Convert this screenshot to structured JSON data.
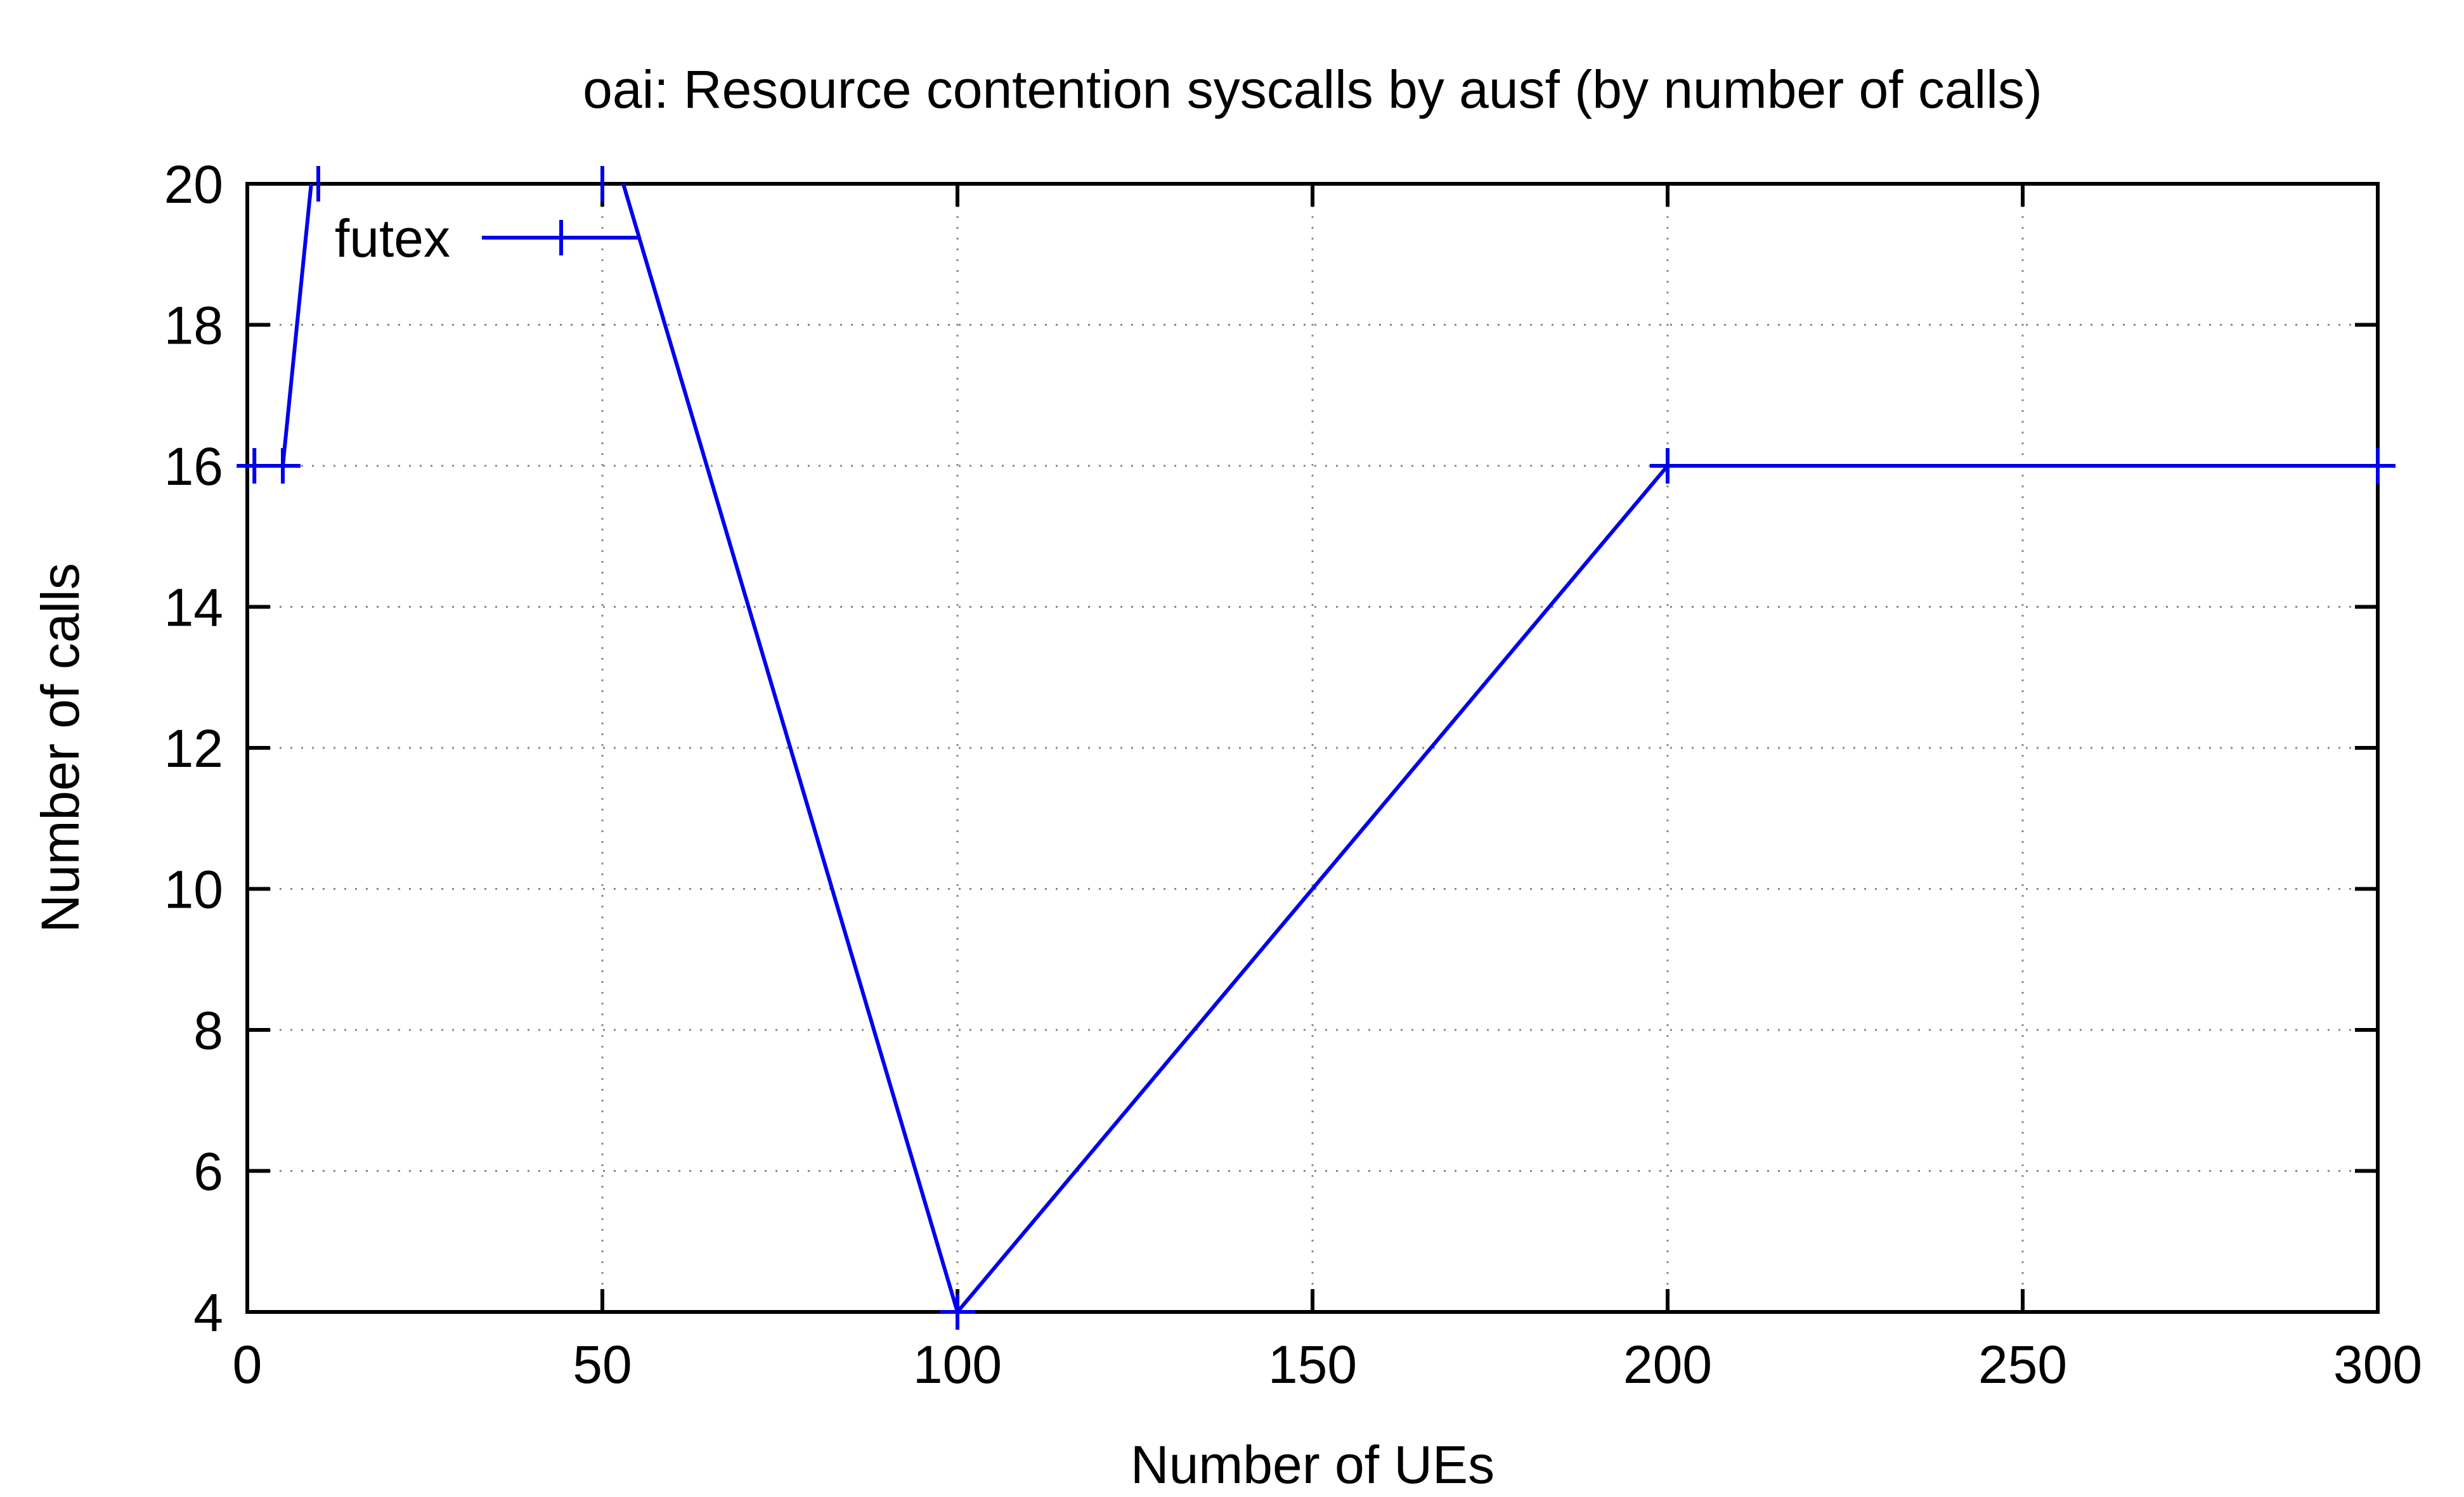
{
  "chart_data": {
    "type": "line",
    "title": "oai: Resource contention syscalls by ausf (by number of calls)",
    "xlabel": "Number of UEs",
    "ylabel": "Number of calls",
    "xlim": [
      0,
      300
    ],
    "ylim": [
      4,
      20
    ],
    "xticks": [
      0,
      50,
      100,
      150,
      200,
      250,
      300
    ],
    "yticks": [
      4,
      6,
      8,
      10,
      12,
      14,
      16,
      18,
      20
    ],
    "grid": true,
    "legend_position": "top-left",
    "series": [
      {
        "name": "futex",
        "color": "#0000ee",
        "marker": "plus",
        "points": [
          {
            "x": 1,
            "y": 16
          },
          {
            "x": 5,
            "y": 16
          },
          {
            "x": 10,
            "y": 21
          },
          {
            "x": 50,
            "y": 21
          },
          {
            "x": 100,
            "y": 4
          },
          {
            "x": 200,
            "y": 16
          },
          {
            "x": 300,
            "y": 16
          }
        ]
      }
    ]
  }
}
